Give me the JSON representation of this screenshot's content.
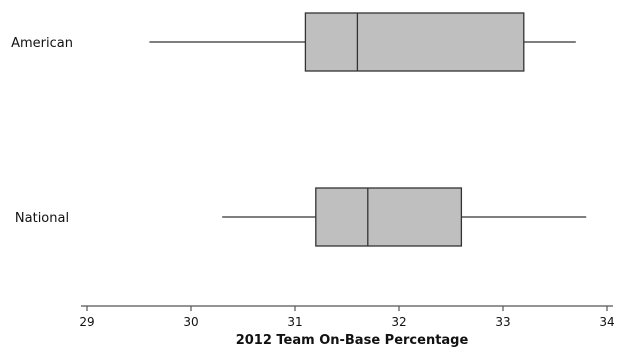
{
  "chart_data": {
    "type": "boxplot",
    "orientation": "horizontal",
    "xlabel": "2012 Team On-Base Percentage",
    "xlim": [
      29,
      34
    ],
    "xticks": [
      29,
      30,
      31,
      32,
      33,
      34
    ],
    "grid": false,
    "series": [
      {
        "label": "American",
        "min": 29.6,
        "q1": 31.1,
        "median": 31.6,
        "q3": 33.2,
        "max": 33.7
      },
      {
        "label": "National",
        "min": 30.3,
        "q1": 31.2,
        "median": 31.7,
        "q3": 32.6,
        "max": 33.8
      }
    ],
    "colors": {
      "box_fill": "#bfbfbf",
      "stroke": "#333333",
      "axis": "#555555"
    }
  }
}
